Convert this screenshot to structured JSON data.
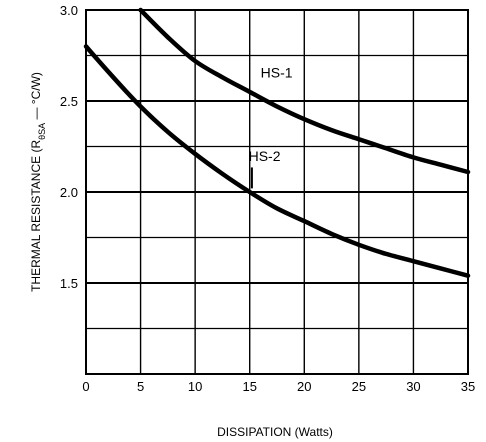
{
  "chart_data": {
    "type": "line",
    "title": "",
    "xlabel": "DISSIPATION (Watts)",
    "ylabel_main": "THERMAL RESISTANCE (R",
    "ylabel_sub": "θSA",
    "ylabel_tail": " — °C/W)",
    "xlim": [
      0,
      35
    ],
    "ylim": [
      1.0,
      3.0
    ],
    "x_ticks": [
      0,
      5,
      10,
      15,
      20,
      25,
      30,
      35
    ],
    "x_tick_labels": [
      "0",
      "5",
      "10",
      "15",
      "20",
      "25",
      "30",
      "35"
    ],
    "y_ticks": [
      1.5,
      2.0,
      2.5,
      3.0
    ],
    "y_tick_labels": [
      "1.5",
      "2.0",
      "2.5",
      "3.0"
    ],
    "grid": true,
    "series": [
      {
        "name": "HS-1",
        "x": [
          5,
          7.5,
          10,
          12.5,
          15,
          17.5,
          20,
          22.5,
          25,
          27.5,
          30,
          32.5,
          35
        ],
        "y": [
          3.0,
          2.85,
          2.72,
          2.63,
          2.55,
          2.47,
          2.4,
          2.34,
          2.29,
          2.24,
          2.19,
          2.15,
          2.11
        ]
      },
      {
        "name": "HS-2",
        "x": [
          0,
          2.5,
          5,
          7.5,
          10,
          12.5,
          15,
          17.5,
          20,
          22.5,
          25,
          27.5,
          30,
          32.5,
          35
        ],
        "y": [
          2.8,
          2.63,
          2.47,
          2.33,
          2.21,
          2.1,
          2.0,
          1.91,
          1.84,
          1.77,
          1.71,
          1.66,
          1.62,
          1.58,
          1.54
        ]
      }
    ]
  }
}
